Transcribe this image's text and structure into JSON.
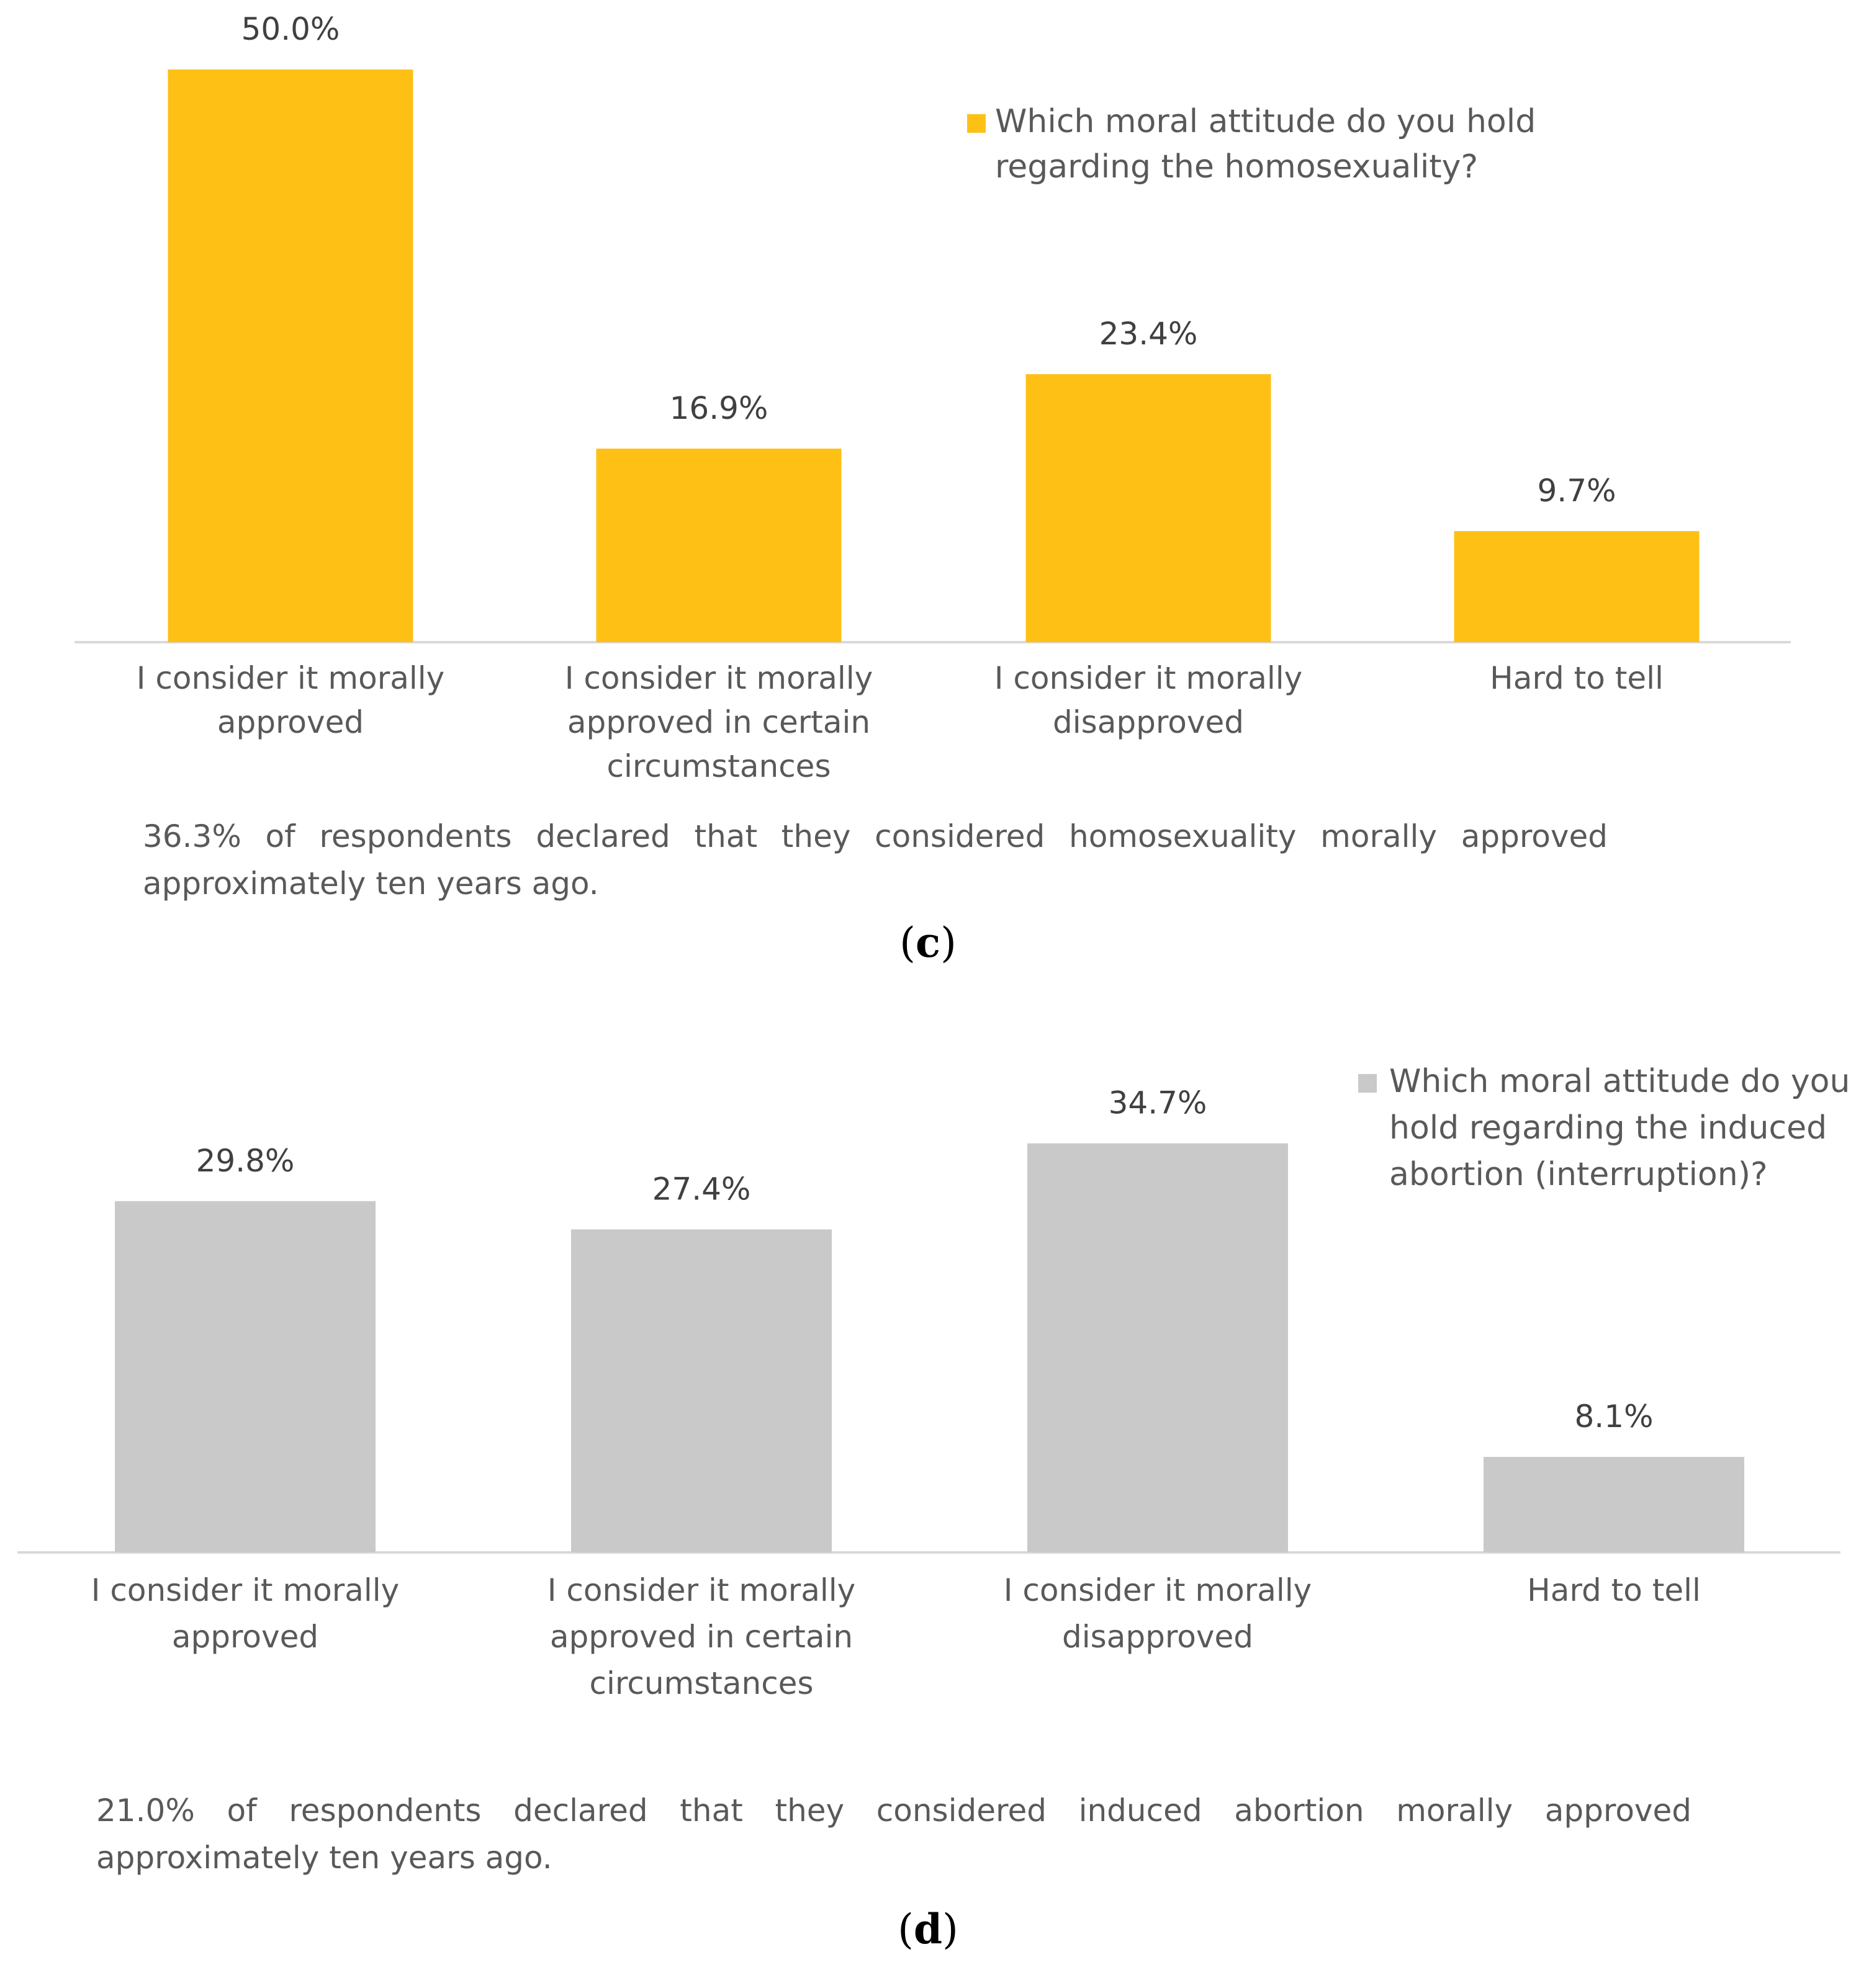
{
  "chart_data": [
    {
      "type": "bar",
      "categories": [
        [
          "I consider it morally",
          "approved"
        ],
        [
          "I consider it morally",
          "approved in certain",
          "circumstances"
        ],
        [
          "I consider it morally",
          "disapproved"
        ],
        [
          "Hard to tell"
        ]
      ],
      "values": [
        50.0,
        16.9,
        23.4,
        9.7
      ],
      "value_labels": [
        "50.0%",
        "16.9%",
        "23.4%",
        "9.7%"
      ],
      "legend": [
        "Which moral attitude do you hold",
        "regarding the homosexuality?"
      ],
      "legend_position": "top-right",
      "color": "#FFC016",
      "grid": false
    },
    {
      "type": "bar",
      "categories": [
        [
          "I consider it morally",
          "approved"
        ],
        [
          "I consider it morally",
          "approved in certain",
          "circumstances"
        ],
        [
          "I consider it morally",
          "disapproved"
        ],
        [
          "Hard to tell"
        ]
      ],
      "values": [
        29.8,
        27.4,
        34.7,
        8.1
      ],
      "value_labels": [
        "29.8%",
        "27.4%",
        "34.7%",
        "8.1%"
      ],
      "legend": [
        "Which moral attitude do you",
        "hold regarding the induced",
        "abortion (interruption)?"
      ],
      "legend_position": "top-right",
      "color": "#C9C9C9",
      "grid": false
    }
  ],
  "notes": {
    "c": {
      "line1": "36.3% of respondents declared that they considered homosexuality morally approved",
      "line2": "approximately ten years ago."
    },
    "d": {
      "line1": "21.0% of respondents declared that they considered induced abortion morally approved",
      "line2": "approximately ten years ago."
    }
  },
  "panel_labels": {
    "c": [
      "(",
      "c",
      ")"
    ],
    "d": [
      "(",
      "d",
      ")"
    ]
  }
}
